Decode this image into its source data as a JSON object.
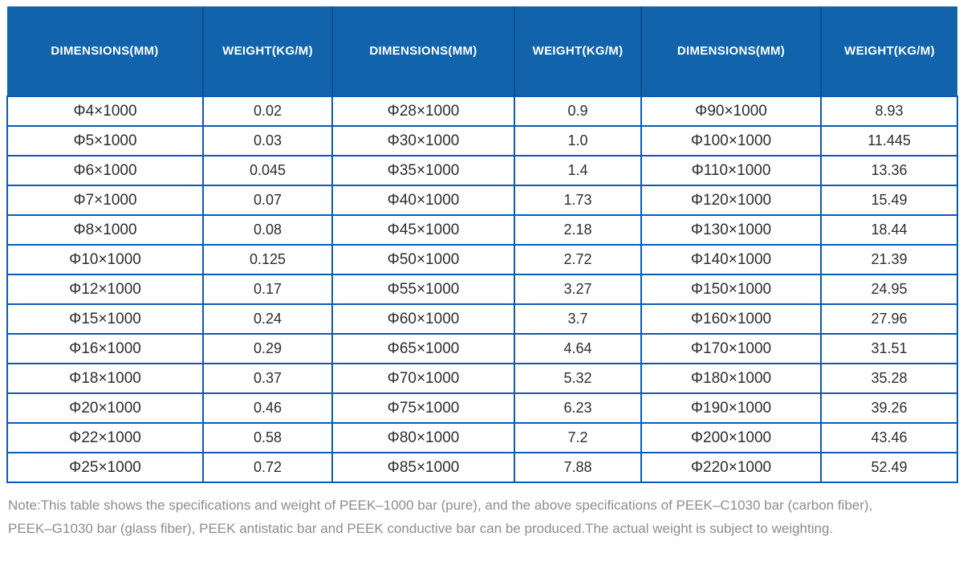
{
  "colors": {
    "header_bg": "#1164ac",
    "header_divider": "#0d5093",
    "table_border": "#0c5ab4",
    "cell_text": "#2d2d2d",
    "header_text": "#ffffff",
    "note_text": "#8d8d8d",
    "page_bg": "#ffffff"
  },
  "table": {
    "header_labels": [
      "DIMENSIONS(MM)",
      "WEIGHT(KG/M)",
      "DIMENSIONS(MM)",
      "WEIGHT(KG/M)",
      "DIMENSIONS(MM)",
      "WEIGHT(KG/M)"
    ],
    "rows": [
      [
        "Φ4×1000",
        "0.02",
        "Φ28×1000",
        "0.9",
        "Φ90×1000",
        "8.93"
      ],
      [
        "Φ5×1000",
        "0.03",
        "Φ30×1000",
        "1.0",
        "Φ100×1000",
        "11.445"
      ],
      [
        "Φ6×1000",
        "0.045",
        "Φ35×1000",
        "1.4",
        "Φ110×1000",
        "13.36"
      ],
      [
        "Φ7×1000",
        "0.07",
        "Φ40×1000",
        "1.73",
        "Φ120×1000",
        "15.49"
      ],
      [
        "Φ8×1000",
        "0.08",
        "Φ45×1000",
        "2.18",
        "Φ130×1000",
        "18.44"
      ],
      [
        "Φ10×1000",
        "0.125",
        "Φ50×1000",
        "2.72",
        "Φ140×1000",
        "21.39"
      ],
      [
        "Φ12×1000",
        "0.17",
        "Φ55×1000",
        "3.27",
        "Φ150×1000",
        "24.95"
      ],
      [
        "Φ15×1000",
        "0.24",
        "Φ60×1000",
        "3.7",
        "Φ160×1000",
        "27.96"
      ],
      [
        "Φ16×1000",
        "0.29",
        "Φ65×1000",
        "4.64",
        "Φ170×1000",
        "31.51"
      ],
      [
        "Φ18×1000",
        "0.37",
        "Φ70×1000",
        "5.32",
        "Φ180×1000",
        "35.28"
      ],
      [
        "Φ20×1000",
        "0.46",
        "Φ75×1000",
        "6.23",
        "Φ190×1000",
        "39.26"
      ],
      [
        "Φ22×1000",
        "0.58",
        "Φ80×1000",
        "7.2",
        "Φ200×1000",
        "43.46"
      ],
      [
        "Φ25×1000",
        "0.72",
        "Φ85×1000",
        "7.88",
        "Φ220×1000",
        "52.49"
      ]
    ]
  },
  "note": {
    "line1": "Note:This table shows the specifications and weight of PEEK–1000 bar (pure), and the above specifications of PEEK–C1030 bar (carbon fiber),",
    "line2": "PEEK–G1030 bar (glass fiber), PEEK antistatic bar and PEEK conductive bar can be produced.The actual weight is subject to weighting."
  }
}
